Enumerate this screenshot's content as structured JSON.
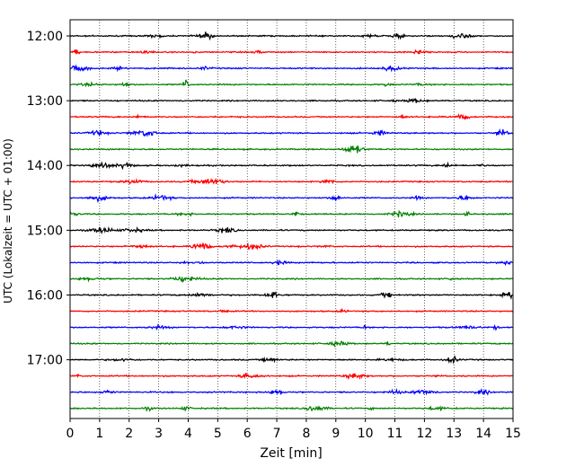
{
  "chart_data": {
    "type": "line",
    "title": "",
    "xlabel": "Zeit  [min]",
    "ylabel": "UTC (Lokalzeit = UTC + 01:00)",
    "xlim": [
      0,
      15
    ],
    "x_ticks": [
      "0",
      "1",
      "2",
      "3",
      "4",
      "5",
      "6",
      "7",
      "8",
      "9",
      "10",
      "11",
      "12",
      "13",
      "14",
      "15"
    ],
    "y_ticks": [
      "12:00",
      "13:00",
      "14:00",
      "15:00",
      "16:00",
      "17:00"
    ],
    "trace_interval_min": 15,
    "first_trace": "12:00",
    "trace_count": 24,
    "color_cycle": [
      "#000000",
      "#ff0000",
      "#0000ff",
      "#008000"
    ],
    "vertical_grid": "dotted",
    "horizontal_grid": false
  }
}
